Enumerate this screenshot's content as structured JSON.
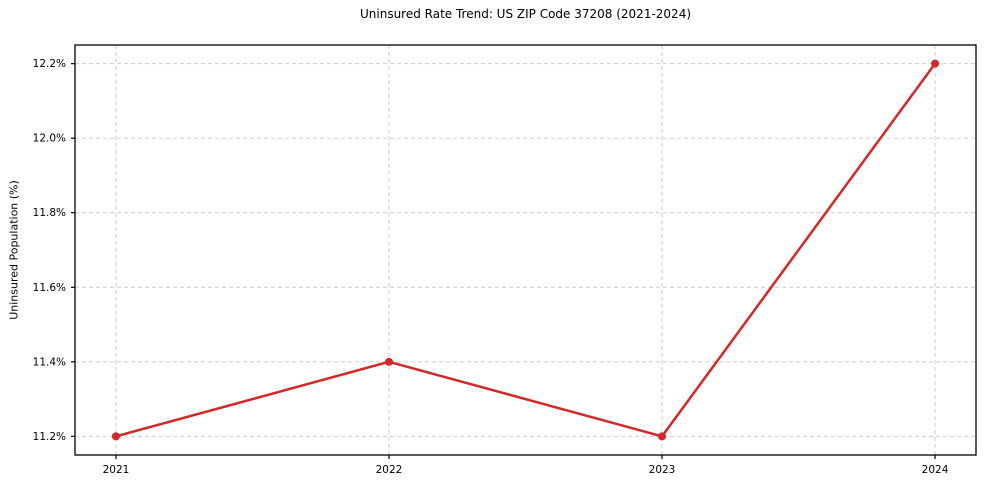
{
  "chart_data": {
    "type": "line",
    "title": "Uninsured Rate Trend: US ZIP Code 37208 (2021-2024)",
    "xlabel": "",
    "ylabel": "Uninsured Population (%)",
    "x": [
      2021,
      2022,
      2023,
      2024
    ],
    "series": [
      {
        "name": "Uninsured Rate",
        "values": [
          11.2,
          11.4,
          11.2,
          12.2
        ],
        "color": "#d62728",
        "marker": "circle"
      }
    ],
    "xticks": [
      2021,
      2022,
      2023,
      2024
    ],
    "xtick_labels": [
      "2021",
      "2022",
      "2023",
      "2024"
    ],
    "yticks": [
      11.2,
      11.4,
      11.6,
      11.8,
      12.0,
      12.2
    ],
    "ytick_labels": [
      "11.2%",
      "11.4%",
      "11.6%",
      "11.8%",
      "12.0%",
      "12.2%"
    ],
    "xlim": [
      2020.85,
      2024.15
    ],
    "ylim": [
      11.15,
      12.25
    ],
    "grid": true,
    "grid_style": "dashed",
    "grid_color": "#cccccc",
    "spine_color": "#000000",
    "tick_color": "#000000",
    "background": "#ffffff",
    "legend": "none"
  }
}
